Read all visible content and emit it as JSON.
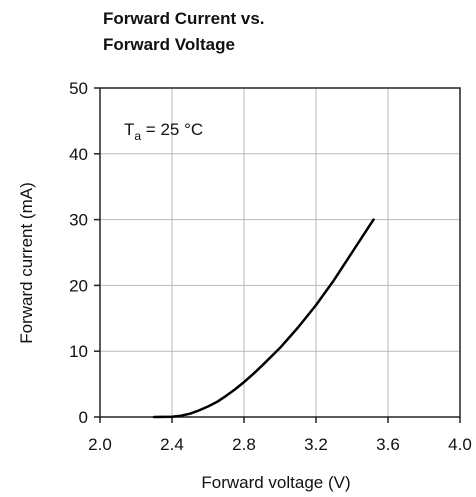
{
  "chart_data": {
    "type": "line",
    "title_lines": [
      "Forward Current vs.",
      "Forward Voltage"
    ],
    "xlabel": "Forward voltage (V)",
    "ylabel": "Forward current (mA)",
    "xlim": [
      2.0,
      4.0
    ],
    "ylim": [
      0,
      50
    ],
    "x_ticks": [
      2.0,
      2.4,
      2.8,
      3.2,
      3.6,
      4.0
    ],
    "x_tick_labels": [
      "2.0",
      "2.4",
      "2.8",
      "3.2",
      "3.6",
      "4.0"
    ],
    "y_ticks": [
      0,
      10,
      20,
      30,
      40,
      50
    ],
    "y_tick_labels": [
      "0",
      "10",
      "20",
      "30",
      "40",
      "50"
    ],
    "grid": true,
    "annotation": {
      "base": "T",
      "subscript": "a",
      "rest": " = 25 °C"
    },
    "series": [
      {
        "x": [
          2.3,
          2.4,
          2.45,
          2.5,
          2.55,
          2.6,
          2.65,
          2.7,
          2.75,
          2.8,
          2.85,
          2.9,
          3.0,
          3.1,
          3.2,
          3.3,
          3.4,
          3.5,
          3.52
        ],
        "y": [
          0,
          0.05,
          0.2,
          0.5,
          1.0,
          1.6,
          2.3,
          3.2,
          4.2,
          5.3,
          6.5,
          7.8,
          10.5,
          13.6,
          17.0,
          20.8,
          25.0,
          29.2,
          30.0
        ]
      }
    ]
  }
}
